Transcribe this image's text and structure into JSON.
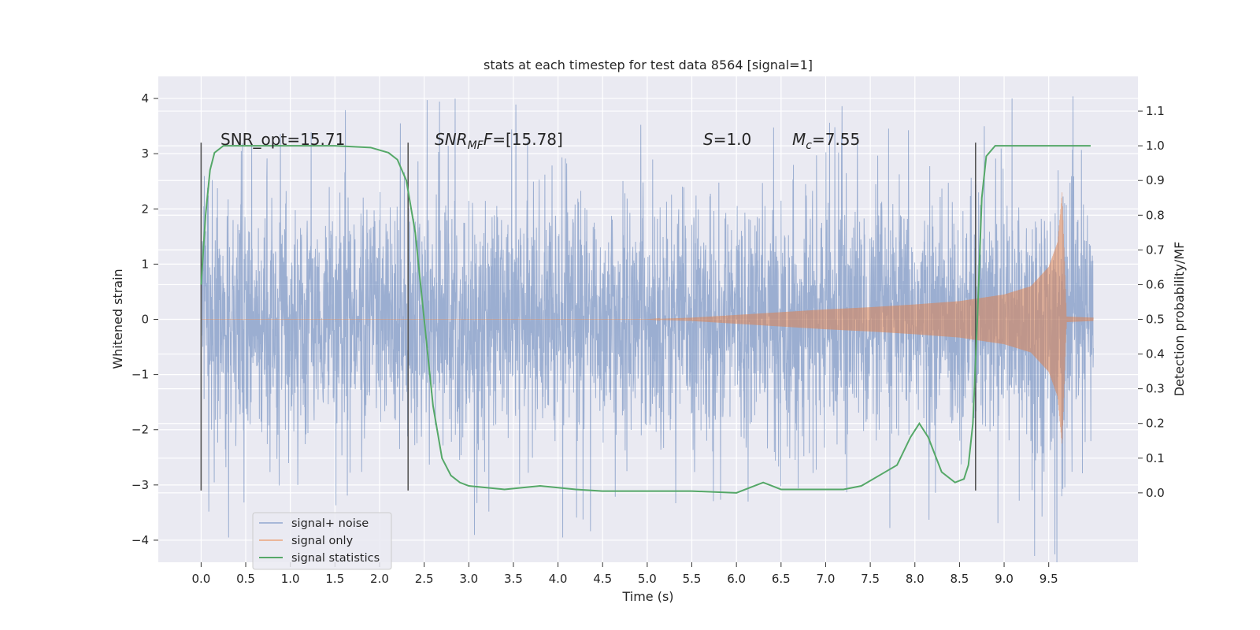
{
  "chart_data": {
    "type": "line",
    "title": "stats at each timestep for test data 8564 [signal=1]",
    "xlabel": "Time (s)",
    "ylabel_left": "Whitened strain",
    "ylabel_right": "Detection probability/MF",
    "xlim": [
      -0.48,
      10.5
    ],
    "ylim_left": [
      -4.4,
      4.4
    ],
    "ylim_right": [
      -0.2,
      1.2
    ],
    "x_ticks": [
      0.0,
      0.5,
      1.0,
      1.5,
      2.0,
      2.5,
      3.0,
      3.5,
      4.0,
      4.5,
      5.0,
      5.5,
      6.0,
      6.5,
      7.0,
      7.5,
      8.0,
      8.5,
      9.0,
      9.5
    ],
    "x_tick_labels": [
      "0.0",
      "0.5",
      "1.0",
      "1.5",
      "2.0",
      "2.5",
      "3.0",
      "3.5",
      "4.0",
      "4.5",
      "5.0",
      "5.5",
      "6.0",
      "6.5",
      "7.0",
      "7.5",
      "8.0",
      "8.5",
      "9.0",
      "9.5"
    ],
    "y_left_ticks": [
      4,
      3,
      2,
      1,
      0,
      -1,
      -2,
      -3,
      -4
    ],
    "y_left_tick_labels": [
      "4",
      "3",
      "2",
      "1",
      "0",
      "−1",
      "−2",
      "−3",
      "−4"
    ],
    "y_right_ticks": [
      1.1,
      1.0,
      0.9,
      0.8,
      0.7,
      0.6,
      0.5,
      0.4,
      0.3,
      0.2,
      0.1,
      0.0
    ],
    "y_right_tick_labels": [
      "1.1",
      "1.0",
      "0.9",
      "0.8",
      "0.7",
      "0.6",
      "0.5",
      "0.4",
      "0.3",
      "0.2",
      "0.1",
      "0.0"
    ],
    "grid": true,
    "legend_position": "lower-left",
    "series": [
      {
        "name": "signal+ noise",
        "axis": "left",
        "color": "#4c72b0",
        "kind": "noisy strain",
        "x_range": [
          0.0,
          10.0
        ],
        "typical_amplitude": 1.3,
        "peak_max": 4.05,
        "peak_min": -3.95
      },
      {
        "name": "signal only",
        "axis": "left",
        "color": "#dd8452",
        "kind": "chirp",
        "envelope_x": [
          0.0,
          5.0,
          5.5,
          6.0,
          6.5,
          7.0,
          7.5,
          8.0,
          8.5,
          9.0,
          9.3,
          9.5,
          9.6,
          9.65,
          9.7,
          10.0
        ],
        "envelope_y": [
          0.0,
          0.0,
          0.03,
          0.08,
          0.13,
          0.18,
          0.22,
          0.27,
          0.33,
          0.45,
          0.6,
          0.95,
          1.4,
          2.3,
          0.05,
          0.03
        ]
      },
      {
        "name": "signal statistics",
        "axis": "right",
        "color": "#55a868",
        "kind": "line",
        "x": [
          0.0,
          0.05,
          0.1,
          0.15,
          0.25,
          0.5,
          1.0,
          1.5,
          1.9,
          2.1,
          2.2,
          2.3,
          2.4,
          2.5,
          2.6,
          2.7,
          2.8,
          2.9,
          3.0,
          3.2,
          3.4,
          3.8,
          4.2,
          4.5,
          5.0,
          5.5,
          6.0,
          6.2,
          6.3,
          6.4,
          6.5,
          7.0,
          7.2,
          7.4,
          7.6,
          7.8,
          7.95,
          8.05,
          8.15,
          8.3,
          8.45,
          8.55,
          8.6,
          8.65,
          8.7,
          8.75,
          8.8,
          8.9,
          9.1,
          9.5,
          9.97
        ],
        "y": [
          0.6,
          0.8,
          0.93,
          0.98,
          1.0,
          1.0,
          1.0,
          1.0,
          0.995,
          0.98,
          0.96,
          0.9,
          0.75,
          0.5,
          0.25,
          0.1,
          0.05,
          0.03,
          0.02,
          0.015,
          0.01,
          0.02,
          0.01,
          0.005,
          0.005,
          0.005,
          0.0,
          0.02,
          0.03,
          0.02,
          0.01,
          0.01,
          0.01,
          0.02,
          0.05,
          0.08,
          0.16,
          0.2,
          0.16,
          0.06,
          0.03,
          0.04,
          0.08,
          0.2,
          0.5,
          0.85,
          0.97,
          1.0,
          1.0,
          1.0,
          1.0
        ]
      }
    ],
    "vertical_markers": [
      {
        "x": 0.0,
        "y_top": 3.2,
        "y_bottom": -3.1
      },
      {
        "x": 2.32,
        "y_top": 3.2,
        "y_bottom": -3.1
      },
      {
        "x": 8.68,
        "y_top": 3.2,
        "y_bottom": -3.1
      }
    ],
    "annotations": [
      {
        "id": "snr-opt",
        "text": "SNR_opt=15.71"
      },
      {
        "id": "snr-mf",
        "base": "SNR",
        "sub": "MF",
        "rest": "=[15.78]"
      },
      {
        "id": "s-value",
        "italic": "S",
        "rest": "=1.0"
      },
      {
        "id": "mc-value",
        "base": "M",
        "sub": "c",
        "rest": "=7.55"
      }
    ],
    "legend": [
      {
        "label": "signal+ noise",
        "color": "#a8b8d8"
      },
      {
        "label": "signal only",
        "color": "#ebb69a"
      },
      {
        "label": "signal statistics",
        "color": "#55a868"
      }
    ],
    "colors": {
      "plot_background": "#eaeaf2",
      "grid": "#ffffff",
      "noise": "#4c72b0",
      "signal": "#dd8452",
      "stat": "#55a868",
      "marker": "#555555"
    }
  }
}
